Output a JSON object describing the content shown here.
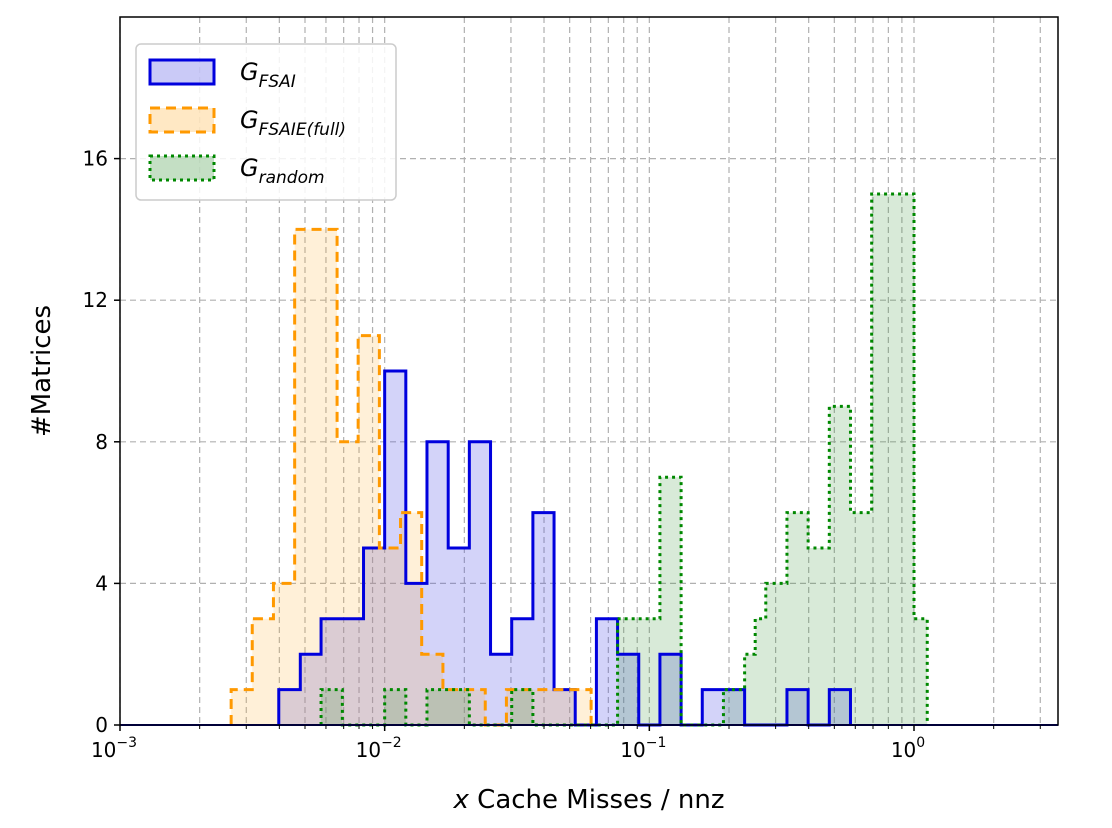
{
  "chart_data": {
    "type": "histogram",
    "xscale": "log",
    "xlim": [
      0.001,
      3.5
    ],
    "ylim": [
      0,
      20
    ],
    "grid": true,
    "legend_position": "top-left",
    "xlabel_var": "x",
    "xlabel_text": " Cache Misses / nnz",
    "ylabel": "#Matrices",
    "y_ticks": [
      "0",
      "4",
      "8",
      "12",
      "16"
    ],
    "x_ticks": [
      {
        "base": "10",
        "exp": "−3"
      },
      {
        "base": "10",
        "exp": "−2"
      },
      {
        "base": "10",
        "exp": "−1"
      },
      {
        "base": "10",
        "exp": "0"
      }
    ],
    "series": [
      {
        "name_main": "G",
        "name_sub": "FSAI",
        "color": "#0000dd",
        "fill": "rgba(80,80,230,0.25)",
        "style": "solid",
        "bins": [
          {
            "x0": 0.00398,
            "x1": 0.0048,
            "count": 1
          },
          {
            "x0": 0.0048,
            "x1": 0.00575,
            "count": 2
          },
          {
            "x0": 0.00575,
            "x1": 0.00692,
            "count": 3
          },
          {
            "x0": 0.00692,
            "x1": 0.00832,
            "count": 3
          },
          {
            "x0": 0.00832,
            "x1": 0.01,
            "count": 5
          },
          {
            "x0": 0.01,
            "x1": 0.01202,
            "count": 10
          },
          {
            "x0": 0.01202,
            "x1": 0.01445,
            "count": 4
          },
          {
            "x0": 0.01445,
            "x1": 0.01738,
            "count": 8
          },
          {
            "x0": 0.01738,
            "x1": 0.02089,
            "count": 5
          },
          {
            "x0": 0.02089,
            "x1": 0.02512,
            "count": 8
          },
          {
            "x0": 0.02512,
            "x1": 0.0302,
            "count": 2
          },
          {
            "x0": 0.0302,
            "x1": 0.03631,
            "count": 3
          },
          {
            "x0": 0.03631,
            "x1": 0.04365,
            "count": 6
          },
          {
            "x0": 0.04365,
            "x1": 0.05248,
            "count": 1
          },
          {
            "x0": 0.05248,
            "x1": 0.0631,
            "count": 0
          },
          {
            "x0": 0.0631,
            "x1": 0.07586,
            "count": 3
          },
          {
            "x0": 0.07586,
            "x1": 0.0912,
            "count": 2
          },
          {
            "x0": 0.0912,
            "x1": 0.10965,
            "count": 0
          },
          {
            "x0": 0.10965,
            "x1": 0.13183,
            "count": 2
          },
          {
            "x0": 0.13183,
            "x1": 0.15849,
            "count": 0
          },
          {
            "x0": 0.15849,
            "x1": 0.19055,
            "count": 1
          },
          {
            "x0": 0.19055,
            "x1": 0.22909,
            "count": 1
          },
          {
            "x0": 0.22909,
            "x1": 0.27542,
            "count": 0
          },
          {
            "x0": 0.27542,
            "x1": 0.33113,
            "count": 0
          },
          {
            "x0": 0.33113,
            "x1": 0.39811,
            "count": 1
          },
          {
            "x0": 0.39811,
            "x1": 0.47863,
            "count": 0
          },
          {
            "x0": 0.47863,
            "x1": 0.57544,
            "count": 1
          }
        ]
      },
      {
        "name_main": "G",
        "name_sub": "FSAIE(full)",
        "color": "#ff9900",
        "fill": "rgba(255,180,60,0.2)",
        "style": "dashed",
        "bins": [
          {
            "x0": 0.00263,
            "x1": 0.00316,
            "count": 1
          },
          {
            "x0": 0.00316,
            "x1": 0.0038,
            "count": 3
          },
          {
            "x0": 0.0038,
            "x1": 0.00457,
            "count": 4
          },
          {
            "x0": 0.00457,
            "x1": 0.0055,
            "count": 14
          },
          {
            "x0": 0.0055,
            "x1": 0.00661,
            "count": 14
          },
          {
            "x0": 0.00661,
            "x1": 0.00794,
            "count": 8
          },
          {
            "x0": 0.00794,
            "x1": 0.00955,
            "count": 11
          },
          {
            "x0": 0.00955,
            "x1": 0.01148,
            "count": 5
          },
          {
            "x0": 0.01148,
            "x1": 0.0138,
            "count": 6
          },
          {
            "x0": 0.0138,
            "x1": 0.0166,
            "count": 2
          },
          {
            "x0": 0.0166,
            "x1": 0.01995,
            "count": 1
          },
          {
            "x0": 0.01995,
            "x1": 0.02399,
            "count": 1
          },
          {
            "x0": 0.02399,
            "x1": 0.02884,
            "count": 0
          },
          {
            "x0": 0.02884,
            "x1": 0.03467,
            "count": 1
          },
          {
            "x0": 0.03467,
            "x1": 0.04169,
            "count": 1
          },
          {
            "x0": 0.04169,
            "x1": 0.05012,
            "count": 1
          },
          {
            "x0": 0.05012,
            "x1": 0.06026,
            "count": 1
          }
        ]
      },
      {
        "name_main": "G",
        "name_sub": "random",
        "color": "#008800",
        "fill": "rgba(60,150,60,0.2)",
        "style": "dotted",
        "bins": [
          {
            "x0": 0.00575,
            "x1": 0.00692,
            "count": 1
          },
          {
            "x0": 0.00692,
            "x1": 0.00832,
            "count": 0
          },
          {
            "x0": 0.00832,
            "x1": 0.01,
            "count": 0
          },
          {
            "x0": 0.01,
            "x1": 0.01202,
            "count": 1
          },
          {
            "x0": 0.01202,
            "x1": 0.01445,
            "count": 0
          },
          {
            "x0": 0.01445,
            "x1": 0.01738,
            "count": 1
          },
          {
            "x0": 0.01738,
            "x1": 0.02089,
            "count": 1
          },
          {
            "x0": 0.02089,
            "x1": 0.02512,
            "count": 0
          },
          {
            "x0": 0.02512,
            "x1": 0.0302,
            "count": 0
          },
          {
            "x0": 0.0302,
            "x1": 0.03631,
            "count": 1
          },
          {
            "x0": 0.03631,
            "x1": 0.04365,
            "count": 0
          },
          {
            "x0": 0.04365,
            "x1": 0.05248,
            "count": 0
          },
          {
            "x0": 0.05248,
            "x1": 0.0631,
            "count": 0
          },
          {
            "x0": 0.0631,
            "x1": 0.07586,
            "count": 0
          },
          {
            "x0": 0.07586,
            "x1": 0.0912,
            "count": 3
          },
          {
            "x0": 0.0912,
            "x1": 0.10965,
            "count": 3
          },
          {
            "x0": 0.10965,
            "x1": 0.13183,
            "count": 7
          },
          {
            "x0": 0.13183,
            "x1": 0.15849,
            "count": 0
          },
          {
            "x0": 0.15849,
            "x1": 0.19055,
            "count": 0
          },
          {
            "x0": 0.19055,
            "x1": 0.22909,
            "count": 1
          },
          {
            "x0": 0.22909,
            "x1": 0.25119,
            "count": 2
          },
          {
            "x0": 0.25119,
            "x1": 0.27542,
            "count": 3
          },
          {
            "x0": 0.27542,
            "x1": 0.33113,
            "count": 4
          },
          {
            "x0": 0.33113,
            "x1": 0.39811,
            "count": 6
          },
          {
            "x0": 0.39811,
            "x1": 0.47863,
            "count": 5
          },
          {
            "x0": 0.47863,
            "x1": 0.57544,
            "count": 9
          },
          {
            "x0": 0.57544,
            "x1": 0.69183,
            "count": 6
          },
          {
            "x0": 0.69183,
            "x1": 0.83176,
            "count": 15
          },
          {
            "x0": 0.83176,
            "x1": 1.0,
            "count": 15
          },
          {
            "x0": 1.0,
            "x1": 1.12202,
            "count": 3
          }
        ]
      }
    ]
  }
}
